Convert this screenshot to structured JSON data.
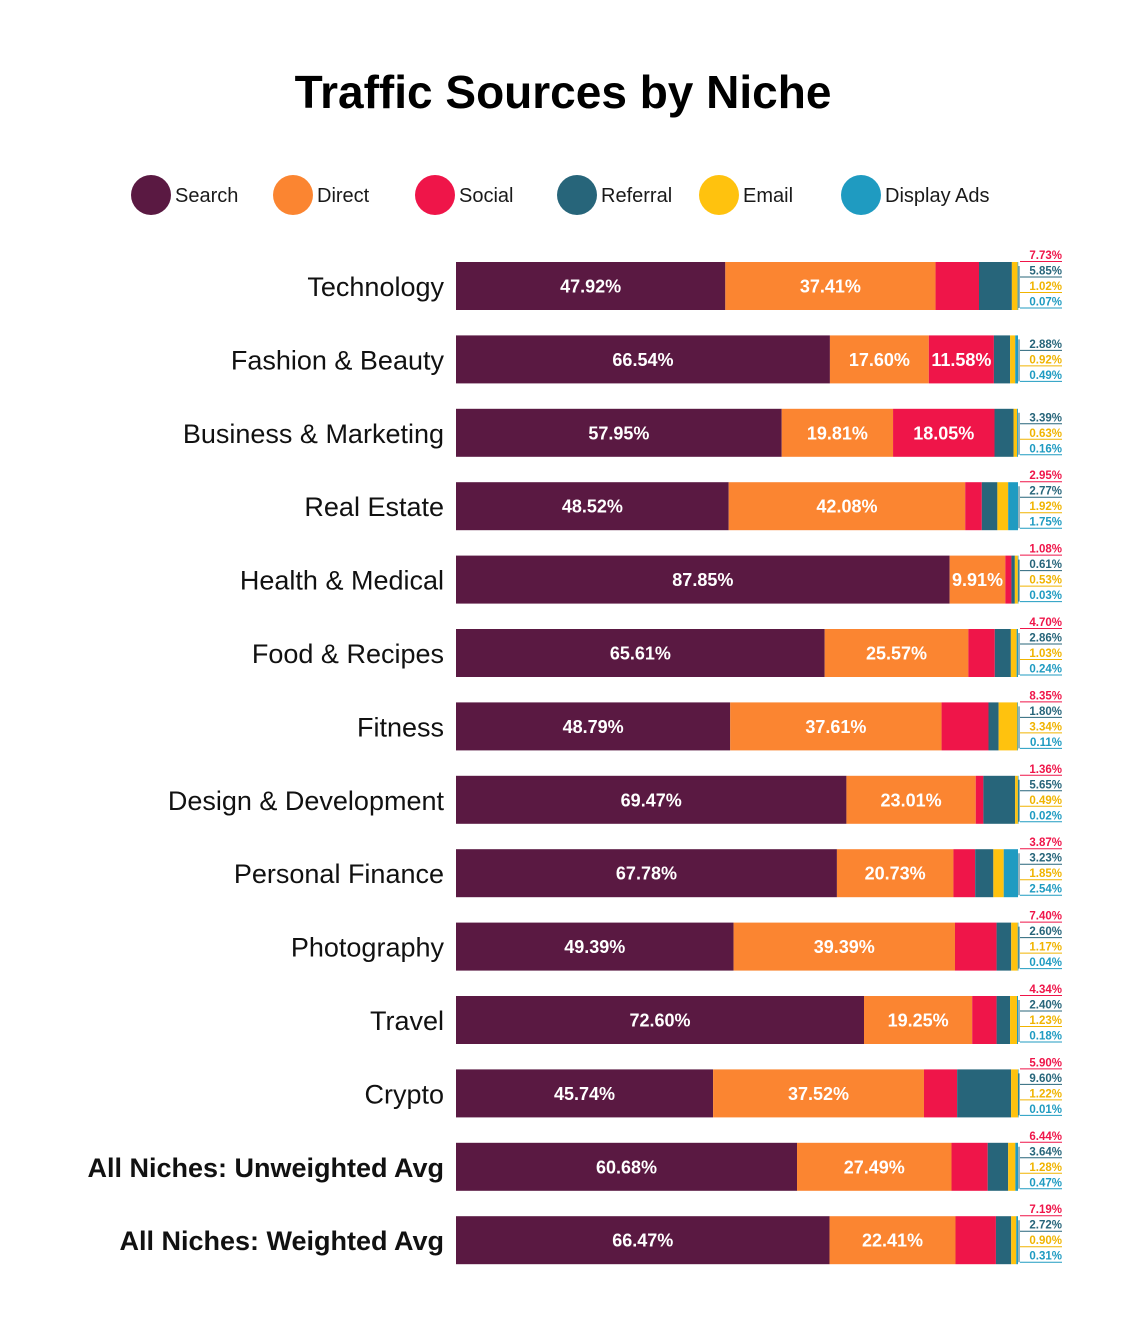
{
  "chart_data": {
    "type": "bar",
    "orientation": "horizontal",
    "stacked": true,
    "title": "Traffic Sources by Niche",
    "legend_position": "top",
    "series": [
      {
        "name": "Search",
        "color": "#5a1942",
        "values": [
          47.92,
          66.54,
          57.95,
          48.52,
          87.85,
          65.61,
          48.79,
          69.47,
          67.78,
          49.39,
          72.6,
          45.74,
          60.68,
          66.47
        ]
      },
      {
        "name": "Direct",
        "color": "#fb8531",
        "values": [
          37.41,
          17.6,
          19.81,
          42.08,
          9.91,
          25.57,
          37.61,
          23.01,
          20.73,
          39.39,
          19.25,
          37.52,
          27.49,
          22.41
        ]
      },
      {
        "name": "Social",
        "color": "#ef1549",
        "values": [
          7.73,
          11.58,
          18.05,
          2.95,
          1.08,
          4.7,
          8.35,
          1.36,
          3.87,
          7.4,
          4.34,
          5.9,
          6.44,
          7.19
        ]
      },
      {
        "name": "Referral",
        "color": "#27657a",
        "values": [
          5.85,
          2.88,
          3.39,
          2.77,
          0.61,
          2.86,
          1.8,
          5.65,
          3.23,
          2.6,
          2.4,
          9.6,
          3.64,
          2.72
        ]
      },
      {
        "name": "Email",
        "color": "#ffc20e",
        "values": [
          1.02,
          0.92,
          0.63,
          1.92,
          0.53,
          1.03,
          3.34,
          0.49,
          1.85,
          1.17,
          1.23,
          1.22,
          1.28,
          0.9
        ]
      },
      {
        "name": "Display Ads",
        "color": "#1f9bc1",
        "values": [
          0.07,
          0.49,
          0.16,
          1.75,
          0.03,
          0.24,
          0.11,
          0.02,
          2.54,
          0.04,
          0.18,
          0.01,
          0.47,
          0.31
        ]
      }
    ],
    "categories": [
      "Technology",
      "Fashion & Beauty",
      "Business & Marketing",
      "Real Estate",
      "Health & Medical",
      "Food & Recipes",
      "Fitness",
      "Design & Development",
      "Personal Finance",
      "Photography",
      "Travel",
      "Crypto",
      "All Niches: Unweighted Avg",
      "All Niches: Weighted Avg"
    ],
    "bold_categories": [
      "All Niches: Unweighted Avg",
      "All Niches: Weighted Avg"
    ],
    "inside_labels": [
      [
        "47.92%",
        "37.41%",
        ""
      ],
      [
        "66.54%",
        "17.60%",
        "11.58%"
      ],
      [
        "57.95%",
        "19.81%",
        "18.05%"
      ],
      [
        "48.52%",
        "42.08%",
        ""
      ],
      [
        "87.85%",
        "9.91%",
        ""
      ],
      [
        "65.61%",
        "25.57%",
        ""
      ],
      [
        "48.79%",
        "37.61%",
        ""
      ],
      [
        "69.47%",
        "23.01%",
        ""
      ],
      [
        "67.78%",
        "20.73%",
        ""
      ],
      [
        "49.39%",
        "39.39%",
        ""
      ],
      [
        "72.60%",
        "19.25%",
        ""
      ],
      [
        "45.74%",
        "37.52%",
        ""
      ],
      [
        "60.68%",
        "27.49%",
        ""
      ],
      [
        "66.47%",
        "22.41%",
        ""
      ]
    ],
    "side_labels": [
      [
        "7.73%",
        "5.85%",
        "1.02%",
        "0.07%"
      ],
      [
        "",
        "2.88%",
        "0.92%",
        "0.49%"
      ],
      [
        "",
        "3.39%",
        "0.63%",
        "0.16%"
      ],
      [
        "2.95%",
        "2.77%",
        "1.92%",
        "1.75%"
      ],
      [
        "1.08%",
        "0.61%",
        "0.53%",
        "0.03%"
      ],
      [
        "4.70%",
        "2.86%",
        "1.03%",
        "0.24%"
      ],
      [
        "8.35%",
        "1.80%",
        "3.34%",
        "0.11%"
      ],
      [
        "1.36%",
        "5.65%",
        "0.49%",
        "0.02%"
      ],
      [
        "3.87%",
        "3.23%",
        "1.85%",
        "2.54%"
      ],
      [
        "7.40%",
        "2.60%",
        "1.17%",
        "0.04%"
      ],
      [
        "4.34%",
        "2.40%",
        "1.23%",
        "0.18%"
      ],
      [
        "5.90%",
        "9.60%",
        "1.22%",
        "0.01%"
      ],
      [
        "6.44%",
        "3.64%",
        "1.28%",
        "0.47%"
      ],
      [
        "7.19%",
        "2.72%",
        "0.90%",
        "0.31%"
      ]
    ],
    "xlim": [
      0,
      100
    ]
  }
}
